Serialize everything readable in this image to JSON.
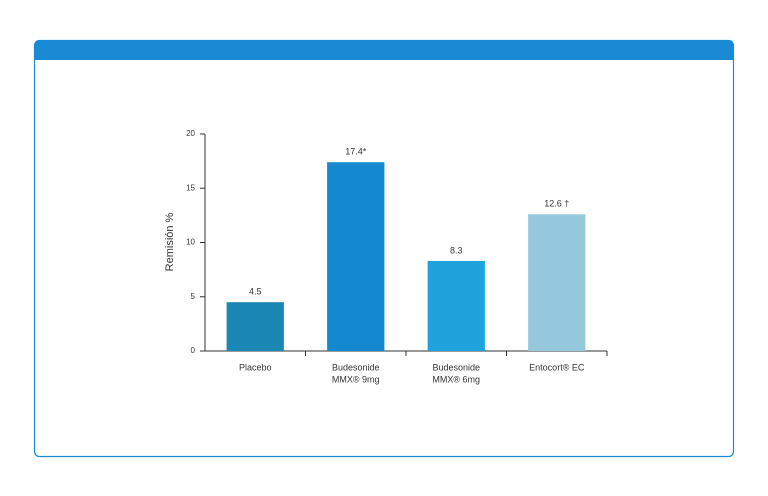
{
  "chart_data": {
    "type": "bar",
    "y_label": "Remisión %",
    "categories": [
      [
        "Placebo"
      ],
      [
        "Budesonide",
        "MMX® 9mg"
      ],
      [
        "Budesonide",
        "MMX® 6mg"
      ],
      [
        "Entocort® EC"
      ]
    ],
    "values": [
      4.5,
      17.4,
      8.3,
      12.6
    ],
    "value_labels": [
      "4.5",
      "17.4*",
      "8.3",
      "12.6 †"
    ],
    "colors": [
      "#1a87b5",
      "#1589d0",
      "#1ea3dc",
      "#95c8dc"
    ],
    "ylim": [
      0,
      20
    ],
    "yticks": [
      0,
      5,
      10,
      15,
      20
    ],
    "grid": false
  }
}
